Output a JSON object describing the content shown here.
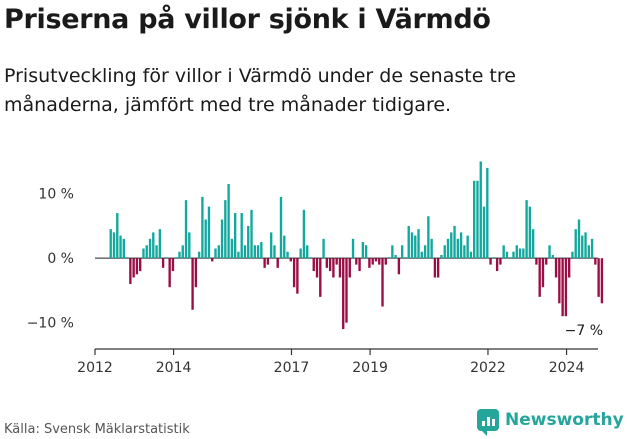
{
  "title": "Priserna på villor sjönk i Värmdö",
  "subtitle": "Prisutveckling för villor i Värmdö under de senaste tre månaderna, jämfört med tre månader tidigare.",
  "source": "Källa: Svensk Mäklarstatistik",
  "brand": {
    "name": "Newsworthy",
    "icon": "newsworthy-logo-icon"
  },
  "colors": {
    "positive": "#13a89e",
    "negative": "#9b0d45",
    "axis": "#333333",
    "text": "#1a1a1a"
  },
  "chart_data": {
    "type": "bar",
    "title": "Priserna på villor sjönk i Värmdö",
    "xlabel": "",
    "ylabel": "",
    "ylim": [
      -13,
      16
    ],
    "x_range": [
      2012,
      2024.8
    ],
    "yticks": [
      {
        "value": 10,
        "label": "10 %"
      },
      {
        "value": 0,
        "label": "0 %"
      },
      {
        "value": -10,
        "label": "−10 %"
      }
    ],
    "xticks": [
      {
        "value": 2012,
        "label": "2012"
      },
      {
        "value": 2014,
        "label": "2014"
      },
      {
        "value": 2017,
        "label": "2017"
      },
      {
        "value": 2019,
        "label": "2019"
      },
      {
        "value": 2022,
        "label": "2022"
      },
      {
        "value": 2024,
        "label": "2024"
      }
    ],
    "start": 2012.4,
    "step": 0.08333,
    "values": [
      4.5,
      4,
      7,
      3.5,
      3,
      0,
      -4,
      -3,
      -2.5,
      -2,
      1.5,
      2,
      3,
      4,
      2,
      4.5,
      -1.5,
      0,
      -4.5,
      -2,
      0,
      1,
      2,
      9,
      4,
      -8,
      -4.5,
      1,
      9.5,
      6,
      8,
      -0.5,
      1.5,
      2,
      6,
      9,
      11.5,
      3,
      7,
      1,
      7,
      2,
      5,
      7.5,
      2,
      2,
      2.5,
      -1.5,
      -1,
      4,
      2,
      -1.5,
      9.5,
      3.5,
      1,
      -0.5,
      -4.5,
      -5.5,
      1.5,
      7.5,
      2,
      0,
      -2,
      -3,
      -6,
      3,
      -1.5,
      -2,
      -3,
      -1,
      -3,
      -11,
      -10,
      -3,
      3,
      -1,
      -2,
      2.5,
      2,
      -1.5,
      -1,
      -0.5,
      -1,
      -7.5,
      -1,
      0,
      2,
      0.5,
      -2.5,
      2,
      0,
      5,
      4,
      3.5,
      4.5,
      1,
      2,
      6.5,
      3,
      -3,
      -3,
      0.5,
      2,
      3,
      4,
      5,
      3,
      4,
      2,
      3.5,
      1,
      12,
      12,
      15,
      8,
      14,
      -1,
      0,
      -2,
      -1,
      2,
      1,
      0,
      1,
      2,
      1.5,
      1.5,
      9,
      8,
      4.5,
      -1,
      -6,
      -4.5,
      -1,
      2,
      0.5,
      -3,
      -7,
      -9,
      -9,
      -3,
      1,
      4.5,
      6,
      3.5,
      4,
      2,
      3,
      -1,
      -6,
      -7
    ],
    "annotations": [
      {
        "label": "−7 %"
      }
    ]
  }
}
